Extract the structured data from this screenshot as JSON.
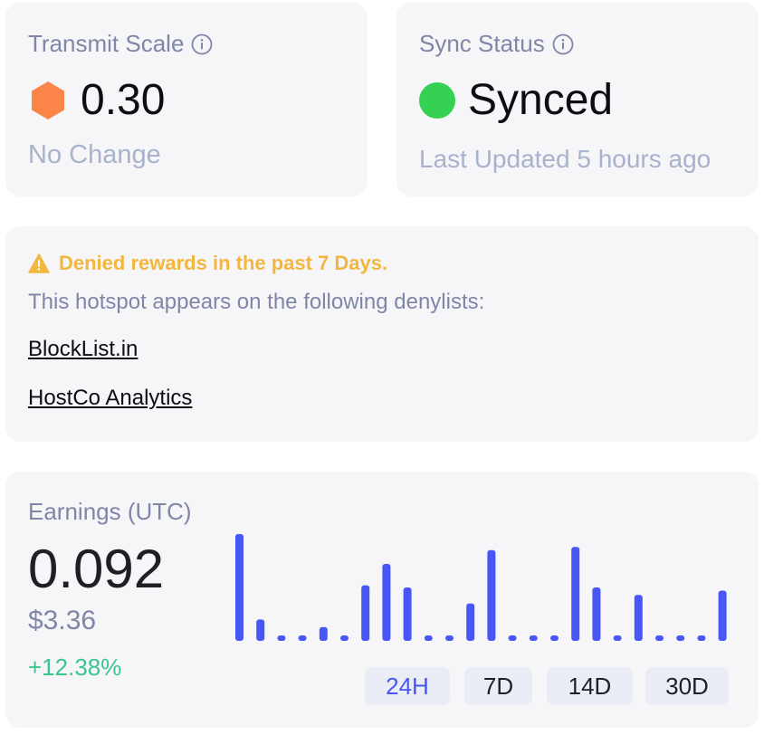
{
  "transmit": {
    "label": "Transmit Scale",
    "value": "0.30",
    "change": "No Change",
    "icon": "hexagon-icon",
    "icon_color": "#fb8548"
  },
  "sync": {
    "label": "Sync Status",
    "value": "Synced",
    "updated": "Last Updated 5 hours ago",
    "status_color": "#34d153"
  },
  "denylist": {
    "warning": "Denied rewards in the past 7 Days.",
    "description": "This hotspot appears on the following denylists:",
    "links": [
      "BlockList.in",
      "HostCo Analytics"
    ],
    "warning_color": "#f3b73f"
  },
  "earnings": {
    "label": "Earnings (UTC)",
    "value": "0.092",
    "usd": "$3.36",
    "change": "+12.38%",
    "ranges": [
      "24H",
      "7D",
      "14D",
      "30D"
    ],
    "active_range": "24H",
    "bar_color": "#4756f5"
  },
  "chart_data": {
    "type": "bar",
    "values": [
      1.0,
      0.2,
      0.04,
      0.04,
      0.13,
      0.04,
      0.52,
      0.72,
      0.5,
      0.04,
      0.04,
      0.35,
      0.85,
      0.04,
      0.04,
      0.04,
      0.88,
      0.5,
      0.04,
      0.43,
      0.04,
      0.04,
      0.04,
      0.47
    ],
    "ylim": [
      0,
      1
    ],
    "grid": false
  }
}
